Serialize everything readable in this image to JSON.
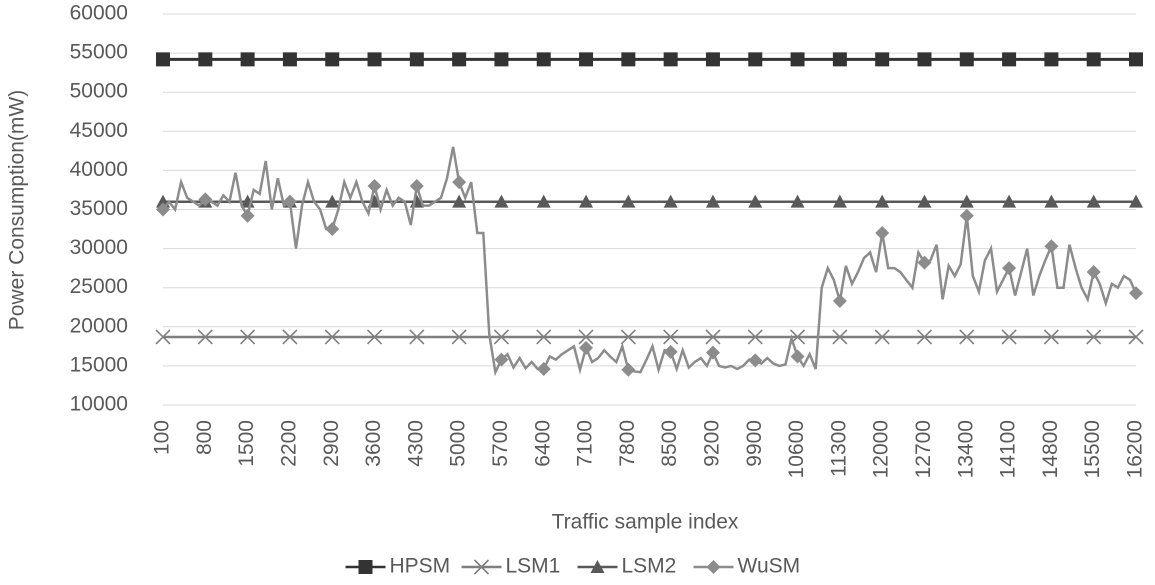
{
  "chart_data": {
    "type": "line",
    "ylabel": "Power Consumption(mW)",
    "xlabel": "Traffic sample index",
    "xlim": [
      100,
      16200
    ],
    "xticks": [
      100,
      800,
      1500,
      2200,
      2900,
      3600,
      4300,
      5000,
      5700,
      6400,
      7100,
      7800,
      8500,
      9200,
      9900,
      10600,
      11300,
      12000,
      12700,
      13400,
      14100,
      14800,
      15500,
      16200
    ],
    "ylim": [
      10000,
      60000
    ],
    "yticks": [
      10000,
      15000,
      20000,
      25000,
      30000,
      35000,
      40000,
      45000,
      50000,
      55000,
      60000
    ],
    "grid": true,
    "legend": "bottom",
    "series": [
      {
        "name": "HPSM",
        "color": "#333333",
        "marker": "square",
        "x": [
          100,
          800,
          1500,
          2200,
          2900,
          3600,
          4300,
          5000,
          5700,
          6400,
          7100,
          7800,
          8500,
          9200,
          9900,
          10600,
          11300,
          12000,
          12700,
          13400,
          14100,
          14800,
          15500,
          16200
        ],
        "values": [
          54200,
          54200,
          54200,
          54200,
          54200,
          54200,
          54200,
          54200,
          54200,
          54200,
          54200,
          54200,
          54200,
          54200,
          54200,
          54200,
          54200,
          54200,
          54200,
          54200,
          54200,
          54200,
          54200,
          54200
        ]
      },
      {
        "name": "LSM1",
        "color": "#7f7f7f",
        "marker": "x",
        "x": [
          100,
          800,
          1500,
          2200,
          2900,
          3600,
          4300,
          5000,
          5700,
          6400,
          7100,
          7800,
          8500,
          9200,
          9900,
          10600,
          11300,
          12000,
          12700,
          13400,
          14100,
          14800,
          15500,
          16200
        ],
        "values": [
          18700,
          18700,
          18700,
          18700,
          18700,
          18700,
          18700,
          18700,
          18700,
          18700,
          18700,
          18700,
          18700,
          18700,
          18700,
          18700,
          18700,
          18700,
          18700,
          18700,
          18700,
          18700,
          18700,
          18700
        ]
      },
      {
        "name": "LSM2",
        "color": "#595959",
        "marker": "triangle",
        "x": [
          100,
          800,
          1500,
          2200,
          2900,
          3600,
          4300,
          5000,
          5700,
          6400,
          7100,
          7800,
          8500,
          9200,
          9900,
          10600,
          11300,
          12000,
          12700,
          13400,
          14100,
          14800,
          15500,
          16200
        ],
        "values": [
          36000,
          36000,
          36000,
          36000,
          36000,
          36000,
          36000,
          36000,
          36000,
          36000,
          36000,
          36000,
          36000,
          36000,
          36000,
          36000,
          36000,
          36000,
          36000,
          36000,
          36000,
          36000,
          36000,
          36000
        ]
      },
      {
        "name": "WuSM",
        "color": "#8c8c8c",
        "marker": "diamond",
        "x": [
          100,
          200,
          300,
          400,
          500,
          600,
          700,
          800,
          900,
          1000,
          1100,
          1200,
          1300,
          1400,
          1500,
          1600,
          1700,
          1800,
          1900,
          2000,
          2100,
          2200,
          2300,
          2400,
          2500,
          2600,
          2700,
          2800,
          2900,
          3000,
          3100,
          3200,
          3300,
          3400,
          3500,
          3600,
          3700,
          3800,
          3900,
          4000,
          4100,
          4200,
          4300,
          4400,
          4500,
          4600,
          4700,
          4800,
          4900,
          5000,
          5100,
          5200,
          5300,
          5400,
          5500,
          5600,
          5700,
          5800,
          5900,
          6000,
          6100,
          6200,
          6300,
          6400,
          6500,
          6600,
          6700,
          6800,
          6900,
          7000,
          7100,
          7200,
          7300,
          7400,
          7500,
          7600,
          7700,
          7800,
          7900,
          8000,
          8100,
          8200,
          8300,
          8400,
          8500,
          8600,
          8700,
          8800,
          8900,
          9000,
          9100,
          9200,
          9300,
          9400,
          9500,
          9600,
          9700,
          9800,
          9900,
          10000,
          10100,
          10200,
          10300,
          10400,
          10500,
          10600,
          10700,
          10800,
          10900,
          11000,
          11100,
          11200,
          11300,
          11400,
          11500,
          11600,
          11700,
          11800,
          11900,
          12000,
          12100,
          12200,
          12300,
          12400,
          12500,
          12600,
          12700,
          12800,
          12900,
          13000,
          13100,
          13200,
          13300,
          13400,
          13500,
          13600,
          13700,
          13800,
          13900,
          14000,
          14100,
          14200,
          14300,
          14400,
          14500,
          14600,
          14700,
          14800,
          14900,
          15000,
          15100,
          15200,
          15300,
          15400,
          15500,
          15600,
          15700,
          15800,
          15900,
          16000,
          16100,
          16200
        ],
        "values": [
          35000,
          36000,
          35000,
          38500,
          36500,
          36000,
          35500,
          36300,
          36000,
          35500,
          36800,
          36000,
          39700,
          35500,
          34200,
          37500,
          37000,
          41200,
          35000,
          39000,
          35500,
          36000,
          30000,
          35500,
          38500,
          36000,
          35000,
          32500,
          32500,
          35000,
          38500,
          36500,
          38500,
          36000,
          34500,
          38000,
          35000,
          37500,
          35500,
          36500,
          36000,
          33000,
          38000,
          35500,
          35500,
          36000,
          36500,
          39000,
          43000,
          38500,
          36500,
          38500,
          32000,
          32000,
          19000,
          14200,
          15800,
          16500,
          14800,
          16000,
          14700,
          15500,
          14600,
          14600,
          16200,
          15800,
          16500,
          17000,
          17500,
          14500,
          17300,
          15500,
          16000,
          17000,
          16200,
          15500,
          17500,
          14500,
          14300,
          14200,
          15800,
          17500,
          14500,
          17000,
          16800,
          14600,
          17000,
          14800,
          15500,
          16000,
          15000,
          16700,
          15000,
          14800,
          15000,
          14600,
          15000,
          15800,
          15700,
          15300,
          16000,
          15300,
          15000,
          15200,
          18500,
          16200,
          15000,
          16500,
          14600,
          25000,
          27500,
          26000,
          23300,
          27800,
          25500,
          27000,
          28800,
          29500,
          27000,
          32000,
          27500,
          27500,
          27000,
          26000,
          25000,
          29500,
          28200,
          28500,
          30500,
          23500,
          27800,
          26500,
          28000,
          34200,
          26500,
          24500,
          28500,
          30000,
          24500,
          26000,
          27500,
          24000,
          27000,
          30000,
          24000,
          26500,
          28500,
          30300,
          25000,
          25000,
          30500,
          27500,
          25000,
          23500,
          27000,
          25500,
          23000,
          25500,
          25000,
          26500,
          26000,
          24300
        ]
      }
    ]
  }
}
